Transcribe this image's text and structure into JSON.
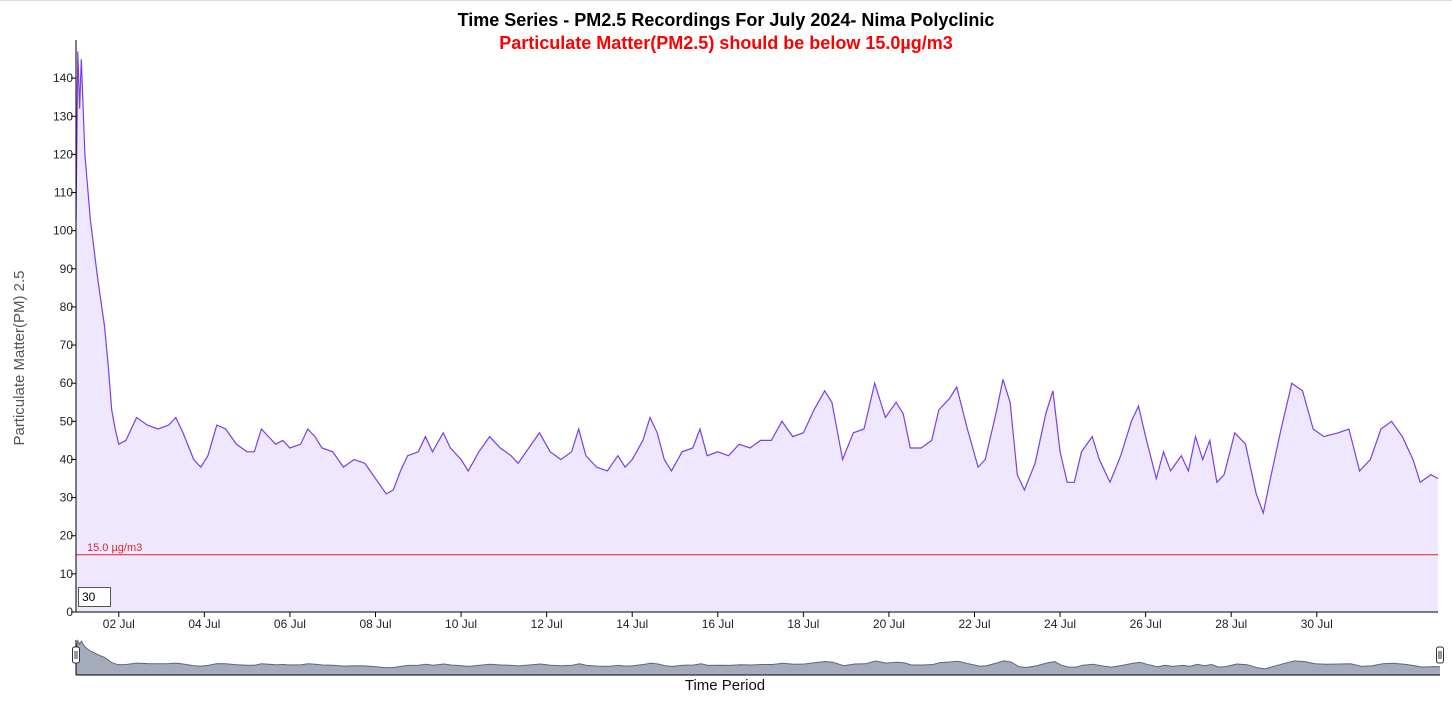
{
  "title": "Time Series - PM2.5 Recordings For July 2024- Nima Polyclinic",
  "subtitle": "Particulate Matter(PM2.5) should be below 15.0µg/m3",
  "colors": {
    "title": "#000000",
    "subtitle": "#ff0000",
    "line": "#7b3fe4",
    "area": "#efe7fd",
    "threshold": "#e0262b",
    "brush_fill": "#9aa3b5",
    "brush_line": "#5b6680"
  },
  "rolling_period_value": "30",
  "threshold_label": "15.0 µg/m3",
  "chart_data": {
    "type": "area",
    "title": "Time Series - PM2.5 Recordings For July 2024- Nima Polyclinic",
    "subtitle": "Particulate Matter(PM2.5) should be below 15.0µg/m3",
    "xlabel": "Time Period",
    "ylabel": "Particulate Matter(PM) 2.5",
    "ylim": [
      0,
      150
    ],
    "xlim": [
      "2024-07-01T00:00",
      "2024-08-01T20:00"
    ],
    "yticks": [
      0,
      10,
      20,
      30,
      40,
      50,
      60,
      70,
      80,
      90,
      100,
      110,
      120,
      130,
      140
    ],
    "xticks": [
      {
        "date": "2024-07-02",
        "label": "02 Jul"
      },
      {
        "date": "2024-07-04",
        "label": "04 Jul"
      },
      {
        "date": "2024-07-06",
        "label": "06 Jul"
      },
      {
        "date": "2024-07-08",
        "label": "08 Jul"
      },
      {
        "date": "2024-07-10",
        "label": "10 Jul"
      },
      {
        "date": "2024-07-12",
        "label": "12 Jul"
      },
      {
        "date": "2024-07-14",
        "label": "14 Jul"
      },
      {
        "date": "2024-07-16",
        "label": "16 Jul"
      },
      {
        "date": "2024-07-18",
        "label": "18 Jul"
      },
      {
        "date": "2024-07-20",
        "label": "20 Jul"
      },
      {
        "date": "2024-07-22",
        "label": "22 Jul"
      },
      {
        "date": "2024-07-24",
        "label": "24 Jul"
      },
      {
        "date": "2024-07-26",
        "label": "26 Jul"
      },
      {
        "date": "2024-07-28",
        "label": "28 Jul"
      },
      {
        "date": "2024-07-30",
        "label": "30 Jul"
      }
    ],
    "threshold": {
      "value": 15.0,
      "label": "15.0 µg/m3"
    },
    "grid": false,
    "series": [
      {
        "points": [
          [
            "2024-07-01T00:00",
            103
          ],
          [
            "2024-07-01T01:00",
            147
          ],
          [
            "2024-07-01T02:00",
            132
          ],
          [
            "2024-07-01T03:00",
            145
          ],
          [
            "2024-07-01T05:00",
            120
          ],
          [
            "2024-07-01T08:00",
            103
          ],
          [
            "2024-07-01T12:00",
            88
          ],
          [
            "2024-07-01T16:00",
            75
          ],
          [
            "2024-07-01T18:00",
            65
          ],
          [
            "2024-07-01T20:00",
            53
          ],
          [
            "2024-07-01T22:00",
            48
          ],
          [
            "2024-07-02T00:00",
            44
          ],
          [
            "2024-07-02T04:00",
            45
          ],
          [
            "2024-07-02T10:00",
            51
          ],
          [
            "2024-07-02T16:00",
            49
          ],
          [
            "2024-07-02T22:00",
            48
          ],
          [
            "2024-07-03T04:00",
            49
          ],
          [
            "2024-07-03T08:00",
            51
          ],
          [
            "2024-07-03T12:00",
            47
          ],
          [
            "2024-07-03T18:00",
            40
          ],
          [
            "2024-07-03T22:00",
            38
          ],
          [
            "2024-07-04T02:00",
            41
          ],
          [
            "2024-07-04T07:00",
            49
          ],
          [
            "2024-07-04T12:00",
            48
          ],
          [
            "2024-07-04T18:00",
            44
          ],
          [
            "2024-07-05T00:00",
            42
          ],
          [
            "2024-07-05T04:00",
            42
          ],
          [
            "2024-07-05T08:00",
            48
          ],
          [
            "2024-07-05T12:00",
            46
          ],
          [
            "2024-07-05T16:00",
            44
          ],
          [
            "2024-07-05T20:00",
            45
          ],
          [
            "2024-07-06T00:00",
            43
          ],
          [
            "2024-07-06T06:00",
            44
          ],
          [
            "2024-07-06T10:00",
            48
          ],
          [
            "2024-07-06T14:00",
            46
          ],
          [
            "2024-07-06T18:00",
            43
          ],
          [
            "2024-07-07T00:00",
            42
          ],
          [
            "2024-07-07T06:00",
            38
          ],
          [
            "2024-07-07T12:00",
            40
          ],
          [
            "2024-07-07T18:00",
            39
          ],
          [
            "2024-07-08T00:00",
            35
          ],
          [
            "2024-07-08T06:00",
            31
          ],
          [
            "2024-07-08T10:00",
            32
          ],
          [
            "2024-07-08T14:00",
            37
          ],
          [
            "2024-07-08T18:00",
            41
          ],
          [
            "2024-07-09T00:00",
            42
          ],
          [
            "2024-07-09T04:00",
            46
          ],
          [
            "2024-07-09T08:00",
            42
          ],
          [
            "2024-07-09T14:00",
            47
          ],
          [
            "2024-07-09T18:00",
            43
          ],
          [
            "2024-07-10T00:00",
            40
          ],
          [
            "2024-07-10T04:00",
            37
          ],
          [
            "2024-07-10T10:00",
            42
          ],
          [
            "2024-07-10T16:00",
            46
          ],
          [
            "2024-07-10T22:00",
            43
          ],
          [
            "2024-07-11T04:00",
            41
          ],
          [
            "2024-07-11T08:00",
            39
          ],
          [
            "2024-07-11T14:00",
            43
          ],
          [
            "2024-07-11T20:00",
            47
          ],
          [
            "2024-07-12T02:00",
            42
          ],
          [
            "2024-07-12T08:00",
            40
          ],
          [
            "2024-07-12T14:00",
            42
          ],
          [
            "2024-07-12T18:00",
            48
          ],
          [
            "2024-07-12T22:00",
            41
          ],
          [
            "2024-07-13T04:00",
            38
          ],
          [
            "2024-07-13T10:00",
            37
          ],
          [
            "2024-07-13T16:00",
            41
          ],
          [
            "2024-07-13T20:00",
            38
          ],
          [
            "2024-07-14T00:00",
            40
          ],
          [
            "2024-07-14T06:00",
            45
          ],
          [
            "2024-07-14T10:00",
            51
          ],
          [
            "2024-07-14T14:00",
            47
          ],
          [
            "2024-07-14T18:00",
            40
          ],
          [
            "2024-07-14T22:00",
            37
          ],
          [
            "2024-07-15T04:00",
            42
          ],
          [
            "2024-07-15T10:00",
            43
          ],
          [
            "2024-07-15T14:00",
            48
          ],
          [
            "2024-07-15T18:00",
            41
          ],
          [
            "2024-07-16T00:00",
            42
          ],
          [
            "2024-07-16T06:00",
            41
          ],
          [
            "2024-07-16T12:00",
            44
          ],
          [
            "2024-07-16T18:00",
            43
          ],
          [
            "2024-07-17T00:00",
            45
          ],
          [
            "2024-07-17T06:00",
            45
          ],
          [
            "2024-07-17T12:00",
            50
          ],
          [
            "2024-07-17T18:00",
            46
          ],
          [
            "2024-07-18T00:00",
            47
          ],
          [
            "2024-07-18T06:00",
            53
          ],
          [
            "2024-07-18T12:00",
            58
          ],
          [
            "2024-07-18T16:00",
            55
          ],
          [
            "2024-07-18T22:00",
            40
          ],
          [
            "2024-07-19T04:00",
            47
          ],
          [
            "2024-07-19T10:00",
            48
          ],
          [
            "2024-07-19T16:00",
            60
          ],
          [
            "2024-07-19T22:00",
            51
          ],
          [
            "2024-07-20T04:00",
            55
          ],
          [
            "2024-07-20T08:00",
            52
          ],
          [
            "2024-07-20T12:00",
            43
          ],
          [
            "2024-07-20T18:00",
            43
          ],
          [
            "2024-07-21T00:00",
            45
          ],
          [
            "2024-07-21T04:00",
            53
          ],
          [
            "2024-07-21T10:00",
            56
          ],
          [
            "2024-07-21T14:00",
            59
          ],
          [
            "2024-07-21T20:00",
            48
          ],
          [
            "2024-07-22T02:00",
            38
          ],
          [
            "2024-07-22T06:00",
            40
          ],
          [
            "2024-07-22T12:00",
            52
          ],
          [
            "2024-07-22T16:00",
            61
          ],
          [
            "2024-07-22T20:00",
            55
          ],
          [
            "2024-07-23T00:00",
            36
          ],
          [
            "2024-07-23T04:00",
            32
          ],
          [
            "2024-07-23T10:00",
            39
          ],
          [
            "2024-07-23T16:00",
            52
          ],
          [
            "2024-07-23T20:00",
            58
          ],
          [
            "2024-07-24T00:00",
            42
          ],
          [
            "2024-07-24T04:00",
            34
          ],
          [
            "2024-07-24T08:00",
            34
          ],
          [
            "2024-07-24T12:00",
            42
          ],
          [
            "2024-07-24T18:00",
            46
          ],
          [
            "2024-07-24T22:00",
            40
          ],
          [
            "2024-07-25T04:00",
            34
          ],
          [
            "2024-07-25T10:00",
            41
          ],
          [
            "2024-07-25T16:00",
            50
          ],
          [
            "2024-07-25T20:00",
            54
          ],
          [
            "2024-07-26T00:00",
            46
          ],
          [
            "2024-07-26T06:00",
            35
          ],
          [
            "2024-07-26T10:00",
            42
          ],
          [
            "2024-07-26T14:00",
            37
          ],
          [
            "2024-07-26T20:00",
            41
          ],
          [
            "2024-07-27T00:00",
            37
          ],
          [
            "2024-07-27T04:00",
            46
          ],
          [
            "2024-07-27T08:00",
            40
          ],
          [
            "2024-07-27T12:00",
            45
          ],
          [
            "2024-07-27T16:00",
            34
          ],
          [
            "2024-07-27T20:00",
            36
          ],
          [
            "2024-07-28T02:00",
            47
          ],
          [
            "2024-07-28T08:00",
            44
          ],
          [
            "2024-07-28T14:00",
            31
          ],
          [
            "2024-07-28T18:00",
            26
          ],
          [
            "2024-07-28T22:00",
            35
          ],
          [
            "2024-07-29T04:00",
            48
          ],
          [
            "2024-07-29T10:00",
            60
          ],
          [
            "2024-07-29T16:00",
            58
          ],
          [
            "2024-07-29T22:00",
            48
          ],
          [
            "2024-07-30T04:00",
            46
          ],
          [
            "2024-07-30T12:00",
            47
          ],
          [
            "2024-07-30T18:00",
            48
          ],
          [
            "2024-07-31T00:00",
            37
          ],
          [
            "2024-07-31T06:00",
            40
          ],
          [
            "2024-07-31T12:00",
            48
          ],
          [
            "2024-07-31T18:00",
            50
          ],
          [
            "2024-08-01T00:00",
            46
          ],
          [
            "2024-08-01T06:00",
            40
          ],
          [
            "2024-08-01T10:00",
            34
          ],
          [
            "2024-08-01T16:00",
            36
          ],
          [
            "2024-08-01T20:00",
            35
          ]
        ]
      }
    ]
  }
}
